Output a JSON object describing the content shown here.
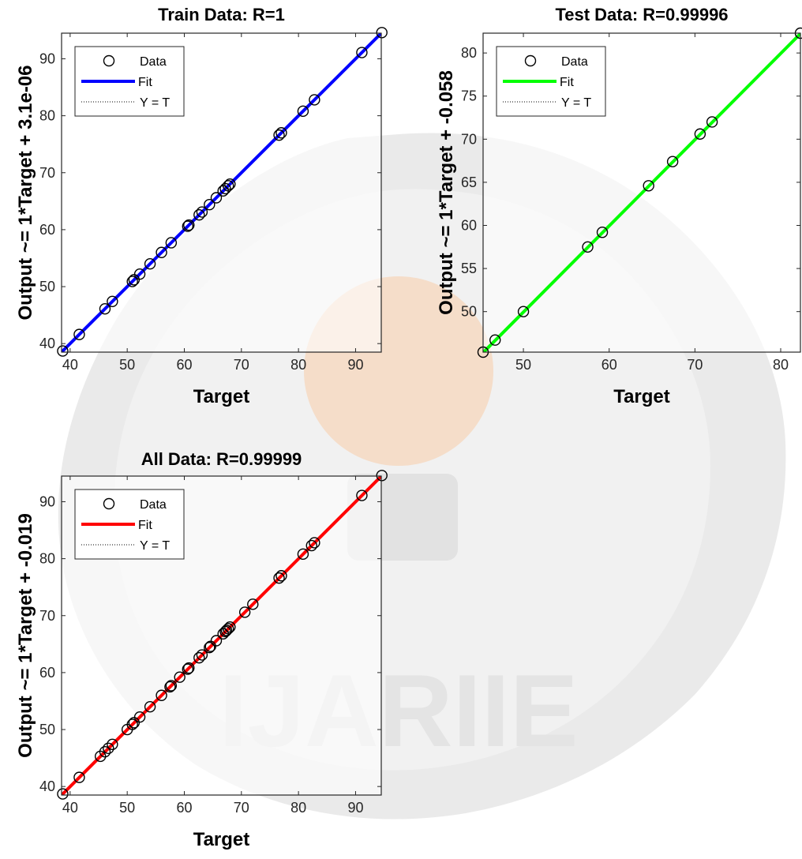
{
  "watermark": {
    "text": "IJARIIE",
    "colors": {
      "seal": "#cfcfcf",
      "bulb": "#f4a460"
    }
  },
  "chart_data": [
    {
      "type": "scatter",
      "title": "Train Data: R=1",
      "xlabel": "Target",
      "ylabel": "Output ~= 1*Target + 3.1e-06",
      "xlim": [
        38.5,
        94.5
      ],
      "ylim": [
        38.5,
        94.5
      ],
      "xticks": [
        40,
        50,
        60,
        70,
        80,
        90
      ],
      "yticks": [
        40,
        50,
        60,
        70,
        80,
        90
      ],
      "fit_color": "#0000ff",
      "legend": [
        "Data",
        "Fit",
        "Y = T"
      ],
      "legend_position": "top-left",
      "fit": {
        "slope": 1,
        "intercept": 3.1e-06
      },
      "points": [
        [
          38.7,
          38.7
        ],
        [
          41.6,
          41.6
        ],
        [
          46.1,
          46.1
        ],
        [
          47.4,
          47.4
        ],
        [
          50.9,
          50.9
        ],
        [
          51.2,
          51.2
        ],
        [
          52.2,
          52.2
        ],
        [
          54.0,
          54.0
        ],
        [
          56.0,
          56.0
        ],
        [
          57.7,
          57.7
        ],
        [
          60.6,
          60.6
        ],
        [
          60.8,
          60.8
        ],
        [
          62.6,
          62.6
        ],
        [
          63.1,
          63.1
        ],
        [
          64.4,
          64.4
        ],
        [
          65.6,
          65.6
        ],
        [
          66.8,
          66.8
        ],
        [
          67.2,
          67.2
        ],
        [
          67.7,
          67.7
        ],
        [
          68.0,
          68.0
        ],
        [
          76.6,
          76.6
        ],
        [
          77.0,
          77.0
        ],
        [
          80.8,
          80.8
        ],
        [
          82.8,
          82.8
        ],
        [
          91.1,
          91.1
        ],
        [
          94.6,
          94.6
        ]
      ]
    },
    {
      "type": "scatter",
      "title": "Test Data: R=0.99996",
      "xlabel": "Target",
      "ylabel": "Output ~= 1*Target + -0.058",
      "xlim": [
        45.3,
        82.3
      ],
      "ylim": [
        45.3,
        82.3
      ],
      "xticks": [
        50,
        60,
        70,
        80
      ],
      "yticks": [
        50,
        55,
        60,
        65,
        70,
        75,
        80
      ],
      "fit_color": "#00ff00",
      "legend": [
        "Data",
        "Fit",
        "Y = T"
      ],
      "legend_position": "top-left",
      "fit": {
        "slope": 1,
        "intercept": -0.058
      },
      "points": [
        [
          45.3,
          45.3
        ],
        [
          46.7,
          46.7
        ],
        [
          50.0,
          50.0
        ],
        [
          57.5,
          57.5
        ],
        [
          59.2,
          59.2
        ],
        [
          64.6,
          64.6
        ],
        [
          67.4,
          67.4
        ],
        [
          70.6,
          70.6
        ],
        [
          72.0,
          72.0
        ],
        [
          82.3,
          82.3
        ]
      ]
    },
    {
      "type": "scatter",
      "title": "All Data: R=0.99999",
      "xlabel": "Target",
      "ylabel": "Output ~= 1*Target + -0.019",
      "xlim": [
        38.5,
        94.5
      ],
      "ylim": [
        38.5,
        94.5
      ],
      "xticks": [
        40,
        50,
        60,
        70,
        80,
        90
      ],
      "yticks": [
        40,
        50,
        60,
        70,
        80,
        90
      ],
      "fit_color": "#ff0000",
      "legend": [
        "Data",
        "Fit",
        "Y = T"
      ],
      "legend_position": "top-left",
      "fit": {
        "slope": 1,
        "intercept": -0.019
      },
      "points": [
        [
          38.7,
          38.7
        ],
        [
          41.6,
          41.6
        ],
        [
          45.3,
          45.3
        ],
        [
          46.1,
          46.1
        ],
        [
          46.7,
          46.7
        ],
        [
          47.4,
          47.4
        ],
        [
          50.0,
          50.0
        ],
        [
          50.9,
          50.9
        ],
        [
          51.2,
          51.2
        ],
        [
          52.2,
          52.2
        ],
        [
          54.0,
          54.0
        ],
        [
          56.0,
          56.0
        ],
        [
          57.5,
          57.5
        ],
        [
          57.7,
          57.7
        ],
        [
          59.2,
          59.2
        ],
        [
          60.6,
          60.6
        ],
        [
          60.8,
          60.8
        ],
        [
          62.6,
          62.6
        ],
        [
          63.1,
          63.1
        ],
        [
          64.4,
          64.4
        ],
        [
          64.6,
          64.6
        ],
        [
          65.6,
          65.6
        ],
        [
          66.8,
          66.8
        ],
        [
          67.2,
          67.2
        ],
        [
          67.4,
          67.4
        ],
        [
          67.7,
          67.7
        ],
        [
          68.0,
          68.0
        ],
        [
          70.6,
          70.6
        ],
        [
          72.0,
          72.0
        ],
        [
          76.6,
          76.6
        ],
        [
          77.0,
          77.0
        ],
        [
          80.8,
          80.8
        ],
        [
          82.3,
          82.3
        ],
        [
          82.8,
          82.8
        ],
        [
          91.1,
          91.1
        ],
        [
          94.6,
          94.6
        ]
      ]
    }
  ]
}
